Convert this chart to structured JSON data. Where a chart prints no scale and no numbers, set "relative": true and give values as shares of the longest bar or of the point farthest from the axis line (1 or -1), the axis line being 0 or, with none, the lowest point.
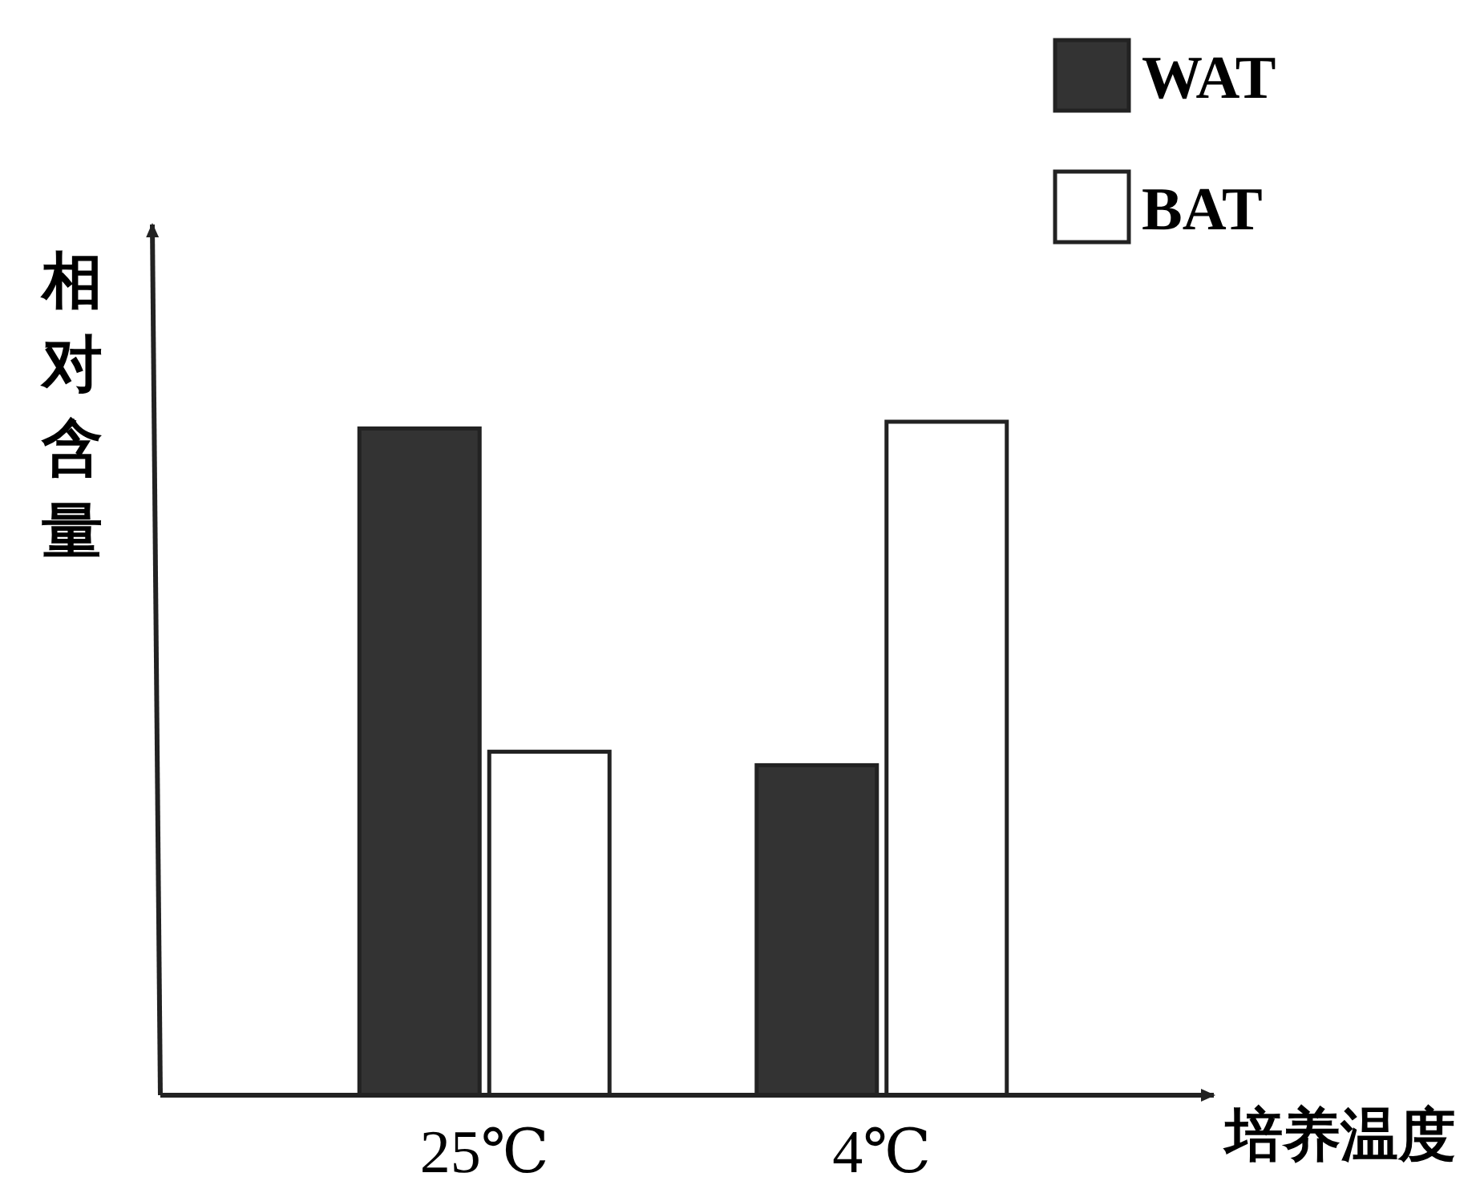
{
  "chart_data": {
    "type": "bar",
    "relative": true,
    "xlabel": "培养温度",
    "ylabel": "相对含量",
    "legend": "top right",
    "categories": [
      "25℃",
      "4℃"
    ],
    "series": [
      {
        "name": "WAT",
        "color": "#333333",
        "values": [
          0.99,
          0.49
        ]
      },
      {
        "name": "BAT",
        "color": "#ffffff",
        "values": [
          0.51,
          1
        ]
      }
    ]
  }
}
